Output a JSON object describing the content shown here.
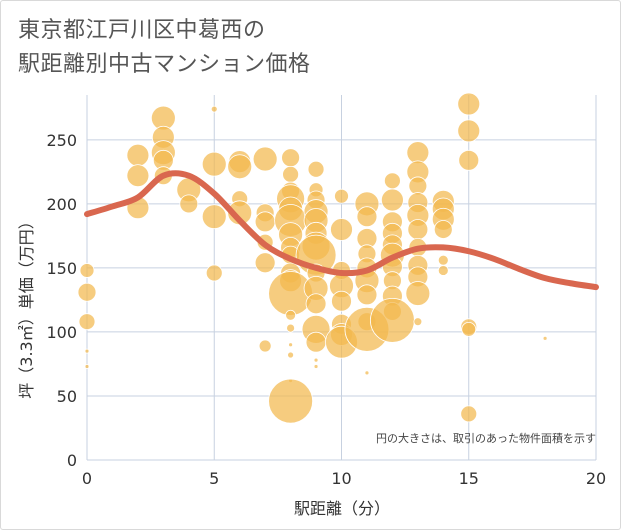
{
  "title": {
    "line1": "東京都江戸川区中葛西の",
    "line2": "駅距離別中古マンション価格"
  },
  "colors": {
    "bubble": "#f3b84e",
    "line": "#d9674f",
    "grid": "#c7d1e0",
    "plot_bg": "#ffffff"
  },
  "chart_data": {
    "type": "scatter",
    "title": "東京都江戸川区中葛西の駅距離別中古マンション価格",
    "xlabel": "駅距離（分）",
    "ylabel": "坪（3.3㎡）単価（万円）",
    "xlim": [
      0,
      20
    ],
    "ylim": [
      0,
      285
    ],
    "xticks": [
      "0",
      "5",
      "10",
      "15",
      "20"
    ],
    "yticks": [
      "0",
      "50",
      "100",
      "150",
      "200",
      "250"
    ],
    "grid": true,
    "note": "円の大きさは、取引のあった物件面積を示す",
    "bubbles": [
      {
        "x": 0,
        "y": 148,
        "r": 7
      },
      {
        "x": 0,
        "y": 131,
        "r": 9
      },
      {
        "x": 0,
        "y": 108,
        "r": 8
      },
      {
        "x": 0,
        "y": 85,
        "r": 2
      },
      {
        "x": 0,
        "y": 73,
        "r": 2
      },
      {
        "x": 2,
        "y": 238,
        "r": 11
      },
      {
        "x": 2,
        "y": 222,
        "r": 11
      },
      {
        "x": 2,
        "y": 197,
        "r": 11
      },
      {
        "x": 3,
        "y": 267,
        "r": 12
      },
      {
        "x": 3,
        "y": 252,
        "r": 11
      },
      {
        "x": 3,
        "y": 240,
        "r": 12
      },
      {
        "x": 3,
        "y": 234,
        "r": 10
      },
      {
        "x": 3,
        "y": 222,
        "r": 9
      },
      {
        "x": 4,
        "y": 211,
        "r": 12
      },
      {
        "x": 4,
        "y": 200,
        "r": 9
      },
      {
        "x": 5,
        "y": 274,
        "r": 3
      },
      {
        "x": 5,
        "y": 231,
        "r": 12
      },
      {
        "x": 5,
        "y": 190,
        "r": 12
      },
      {
        "x": 5,
        "y": 146,
        "r": 8
      },
      {
        "x": 6,
        "y": 233,
        "r": 11
      },
      {
        "x": 6,
        "y": 229,
        "r": 12
      },
      {
        "x": 6,
        "y": 204,
        "r": 8
      },
      {
        "x": 6,
        "y": 193,
        "r": 12
      },
      {
        "x": 7,
        "y": 235,
        "r": 12
      },
      {
        "x": 7,
        "y": 193,
        "r": 9
      },
      {
        "x": 7,
        "y": 186,
        "r": 10
      },
      {
        "x": 7,
        "y": 170,
        "r": 8
      },
      {
        "x": 7,
        "y": 154,
        "r": 10
      },
      {
        "x": 7,
        "y": 89,
        "r": 6
      },
      {
        "x": 8,
        "y": 236,
        "r": 9
      },
      {
        "x": 8,
        "y": 223,
        "r": 8
      },
      {
        "x": 8,
        "y": 210,
        "r": 9
      },
      {
        "x": 8,
        "y": 204,
        "r": 14
      },
      {
        "x": 8,
        "y": 196,
        "r": 12
      },
      {
        "x": 8,
        "y": 187,
        "r": 16
      },
      {
        "x": 8,
        "y": 176,
        "r": 12
      },
      {
        "x": 8,
        "y": 166,
        "r": 10
      },
      {
        "x": 8,
        "y": 160,
        "r": 9
      },
      {
        "x": 8,
        "y": 146,
        "r": 10
      },
      {
        "x": 8,
        "y": 140,
        "r": 11
      },
      {
        "x": 8,
        "y": 130,
        "r": 22
      },
      {
        "x": 8,
        "y": 113,
        "r": 5
      },
      {
        "x": 8,
        "y": 103,
        "r": 4
      },
      {
        "x": 8,
        "y": 90,
        "r": 2
      },
      {
        "x": 8,
        "y": 82,
        "r": 3
      },
      {
        "x": 8,
        "y": 62,
        "r": 2
      },
      {
        "x": 8,
        "y": 46,
        "r": 22
      },
      {
        "x": 9,
        "y": 227,
        "r": 8
      },
      {
        "x": 9,
        "y": 211,
        "r": 7
      },
      {
        "x": 9,
        "y": 203,
        "r": 9
      },
      {
        "x": 9,
        "y": 194,
        "r": 12
      },
      {
        "x": 9,
        "y": 187,
        "r": 12
      },
      {
        "x": 9,
        "y": 177,
        "r": 11
      },
      {
        "x": 9,
        "y": 167,
        "r": 14
      },
      {
        "x": 9,
        "y": 160,
        "r": 20
      },
      {
        "x": 9,
        "y": 146,
        "r": 9
      },
      {
        "x": 9,
        "y": 134,
        "r": 12
      },
      {
        "x": 9,
        "y": 122,
        "r": 10
      },
      {
        "x": 9,
        "y": 102,
        "r": 14
      },
      {
        "x": 9,
        "y": 92,
        "r": 10
      },
      {
        "x": 9,
        "y": 78,
        "r": 2
      },
      {
        "x": 9,
        "y": 73,
        "r": 2
      },
      {
        "x": 10,
        "y": 206,
        "r": 7
      },
      {
        "x": 10,
        "y": 180,
        "r": 11
      },
      {
        "x": 10,
        "y": 148,
        "r": 9
      },
      {
        "x": 10,
        "y": 136,
        "r": 12
      },
      {
        "x": 10,
        "y": 124,
        "r": 10
      },
      {
        "x": 10,
        "y": 106,
        "r": 10
      },
      {
        "x": 10,
        "y": 98,
        "r": 11
      },
      {
        "x": 10,
        "y": 92,
        "r": 16
      },
      {
        "x": 11,
        "y": 200,
        "r": 12
      },
      {
        "x": 11,
        "y": 190,
        "r": 10
      },
      {
        "x": 11,
        "y": 173,
        "r": 10
      },
      {
        "x": 11,
        "y": 161,
        "r": 9
      },
      {
        "x": 11,
        "y": 150,
        "r": 10
      },
      {
        "x": 11,
        "y": 140,
        "r": 12
      },
      {
        "x": 11,
        "y": 129,
        "r": 10
      },
      {
        "x": 11,
        "y": 108,
        "r": 9
      },
      {
        "x": 11,
        "y": 102,
        "r": 22
      },
      {
        "x": 11,
        "y": 68,
        "r": 2
      },
      {
        "x": 12,
        "y": 218,
        "r": 8
      },
      {
        "x": 12,
        "y": 203,
        "r": 11
      },
      {
        "x": 12,
        "y": 186,
        "r": 10
      },
      {
        "x": 12,
        "y": 177,
        "r": 10
      },
      {
        "x": 12,
        "y": 168,
        "r": 10
      },
      {
        "x": 12,
        "y": 160,
        "r": 12
      },
      {
        "x": 12,
        "y": 151,
        "r": 10
      },
      {
        "x": 12,
        "y": 140,
        "r": 9
      },
      {
        "x": 12,
        "y": 128,
        "r": 10
      },
      {
        "x": 12,
        "y": 116,
        "r": 9
      },
      {
        "x": 12,
        "y": 109,
        "r": 22
      },
      {
        "x": 13,
        "y": 240,
        "r": 11
      },
      {
        "x": 13,
        "y": 225,
        "r": 11
      },
      {
        "x": 13,
        "y": 214,
        "r": 9
      },
      {
        "x": 13,
        "y": 201,
        "r": 10
      },
      {
        "x": 13,
        "y": 191,
        "r": 11
      },
      {
        "x": 13,
        "y": 180,
        "r": 10
      },
      {
        "x": 13,
        "y": 166,
        "r": 9
      },
      {
        "x": 13,
        "y": 152,
        "r": 10
      },
      {
        "x": 13,
        "y": 143,
        "r": 10
      },
      {
        "x": 13,
        "y": 130,
        "r": 12
      },
      {
        "x": 13,
        "y": 108,
        "r": 4
      },
      {
        "x": 14,
        "y": 202,
        "r": 11
      },
      {
        "x": 14,
        "y": 196,
        "r": 11
      },
      {
        "x": 14,
        "y": 188,
        "r": 11
      },
      {
        "x": 14,
        "y": 180,
        "r": 9
      },
      {
        "x": 14,
        "y": 156,
        "r": 5
      },
      {
        "x": 14,
        "y": 148,
        "r": 5
      },
      {
        "x": 15,
        "y": 278,
        "r": 11
      },
      {
        "x": 15,
        "y": 257,
        "r": 11
      },
      {
        "x": 15,
        "y": 234,
        "r": 10
      },
      {
        "x": 15,
        "y": 104,
        "r": 8
      },
      {
        "x": 15,
        "y": 102,
        "r": 7
      },
      {
        "x": 15,
        "y": 36,
        "r": 8
      },
      {
        "x": 18,
        "y": 95,
        "r": 2
      }
    ],
    "trend": {
      "x": [
        0,
        1,
        2,
        3,
        4,
        5,
        6,
        7,
        8,
        9,
        10,
        11,
        12,
        13,
        14,
        15,
        16,
        17,
        18,
        19,
        20
      ],
      "y": [
        192,
        198,
        205,
        222,
        222,
        208,
        187,
        168,
        157,
        150,
        146,
        148,
        158,
        165,
        166,
        163,
        157,
        149,
        142,
        138,
        135
      ]
    }
  }
}
